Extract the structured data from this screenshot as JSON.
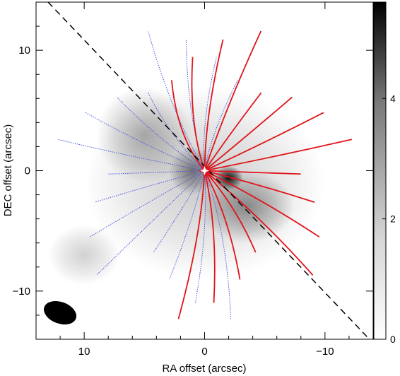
{
  "chart_data": {
    "type": "heatmap",
    "xlabel": "RA offset (arcsec)",
    "ylabel": "DEC offset (arcsec)",
    "x_range_data": [
      14,
      -14
    ],
    "y_range_data": [
      -14,
      14
    ],
    "x_tick_labels": [
      "10",
      "0",
      "−10"
    ],
    "x_tick_values": [
      10,
      0,
      -10
    ],
    "y_tick_labels": [
      "−10",
      "0",
      "10"
    ],
    "y_tick_values": [
      -10,
      0,
      10
    ],
    "colorbar": {
      "tick_labels": [
        "0",
        "2",
        "4"
      ],
      "tick_values": [
        0,
        2,
        4
      ],
      "range": [
        0,
        5.6
      ],
      "colormap": "white-to-black grayscale"
    },
    "continuum_blobs": [
      {
        "x": 0,
        "y": -1,
        "rx": 10,
        "ry": 8,
        "value": 1.2
      },
      {
        "x": 5,
        "y": 3,
        "rx": 4,
        "ry": 4,
        "value": 1.7
      },
      {
        "x": -3.5,
        "y": -3,
        "rx": 4,
        "ry": 3,
        "value": 2.2
      },
      {
        "x": -2,
        "y": -0.6,
        "rx": 1.2,
        "ry": 1,
        "value": 5.2
      },
      {
        "x": 1,
        "y": 0,
        "rx": 2,
        "ry": 2,
        "value": 2.6
      },
      {
        "x": 10,
        "y": -7,
        "rx": 3,
        "ry": 2.5,
        "value": 1.0
      }
    ],
    "major_axis_line": {
      "from": [
        13,
        14
      ],
      "to": [
        -13.5,
        -13.8
      ],
      "style": "dashed",
      "color": "#000000"
    },
    "center_marker": {
      "x": 0,
      "y": 0,
      "symbol": "star",
      "color": "#ffffff"
    },
    "beam": {
      "x": 12,
      "y": -11.8,
      "major": 2.8,
      "minor": 1.8,
      "angle_deg": 20,
      "color": "#000000"
    },
    "series": [
      {
        "style": "dotted",
        "color": "#4a56e0",
        "side": "blueshifted (east)"
      },
      {
        "style": "solid",
        "color": "#e0141a",
        "side": "redshifted (west)"
      }
    ]
  }
}
